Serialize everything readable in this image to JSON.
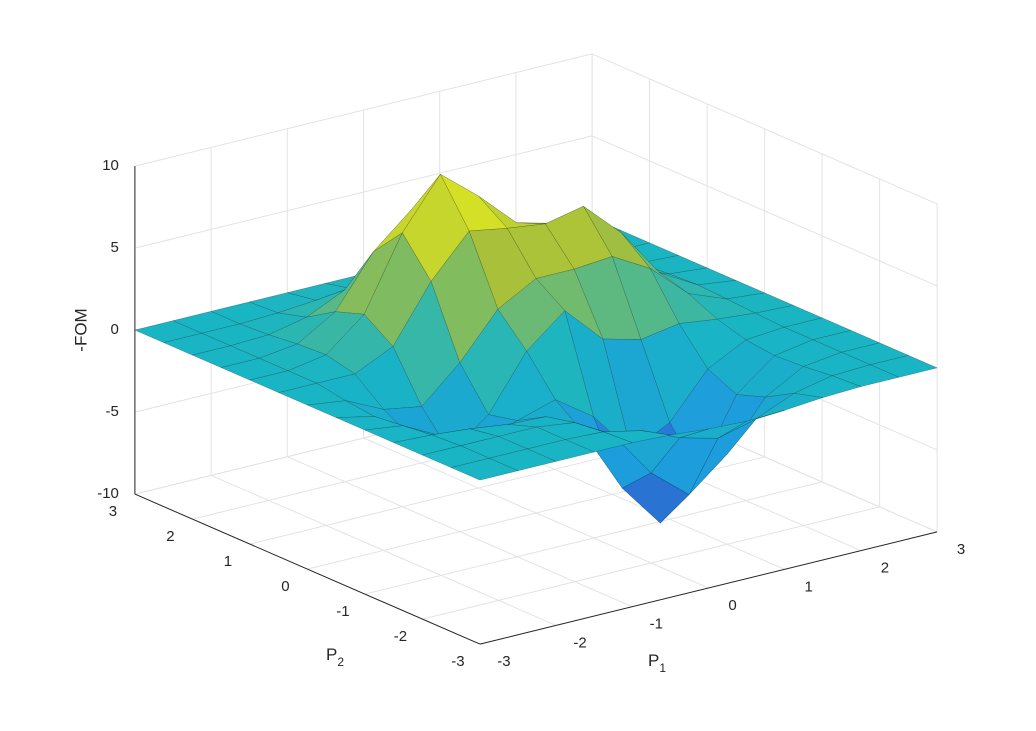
{
  "chart_data": {
    "type": "surface",
    "xlabel": {
      "text": "P",
      "subscript": "1"
    },
    "ylabel": {
      "text": "P",
      "subscript": "2"
    },
    "zlabel": "-FOM",
    "xlim": [
      -3,
      3
    ],
    "ylim": [
      -3,
      3
    ],
    "zlim": [
      -10,
      10
    ],
    "xticks": [
      -3,
      -2,
      -1,
      0,
      1,
      2,
      3
    ],
    "yticks": [
      -3,
      -2,
      -1,
      0,
      1,
      2,
      3
    ],
    "zticks": [
      -10,
      -5,
      0,
      5,
      10
    ],
    "grid": true,
    "colormap": [
      "#3e26a8",
      "#2094e5",
      "#19b5c4",
      "#a5be3c",
      "#f9fb15"
    ],
    "x": [
      -3,
      -2.5,
      -2,
      -1.5,
      -1,
      -0.5,
      0,
      0.5,
      1,
      1.5,
      2,
      2.5,
      3
    ],
    "y": [
      -3,
      -2.5,
      -2,
      -1.5,
      -1,
      -0.5,
      0,
      0.5,
      1,
      1.5,
      2,
      2.5,
      3
    ],
    "z": [
      [
        0,
        0,
        0,
        0,
        0,
        -0.1,
        -0.3,
        -0.4,
        -0.3,
        -0.1,
        0,
        0,
        0
      ],
      [
        0,
        0,
        0,
        0,
        -0.1,
        -0.6,
        -1.6,
        -2.2,
        -1.6,
        -0.6,
        -0.1,
        0,
        0
      ],
      [
        0,
        0,
        0,
        0,
        -0.3,
        -1.6,
        -4.5,
        -6.4,
        -4.5,
        -1.6,
        -0.3,
        0,
        0
      ],
      [
        0,
        -0.1,
        -0.3,
        -0.6,
        -0.7,
        -2.3,
        -6.2,
        -8.9,
        -6.4,
        -2.2,
        -0.4,
        0,
        0
      ],
      [
        0,
        -0.3,
        -1.5,
        -2.5,
        -1.7,
        -1.0,
        -2.6,
        -5.3,
        -4.1,
        -1.4,
        -0.2,
        0,
        0
      ],
      [
        0,
        -0.5,
        -2.4,
        -3.9,
        -2.1,
        1.2,
        3.1,
        0.8,
        0.2,
        0.6,
        0.3,
        0.1,
        0
      ],
      [
        0,
        -0.3,
        -1.4,
        -1.8,
        0.3,
        3.0,
        4.3,
        4.3,
        4.5,
        3.2,
        1.1,
        0.2,
        0
      ],
      [
        0,
        0,
        0,
        1.1,
        4.5,
        7.0,
        6.6,
        6.3,
        6.8,
        4.6,
        1.6,
        0.3,
        0
      ],
      [
        0,
        0,
        0.4,
        2.3,
        6.7,
        9.7,
        7.8,
        5.6,
        5.0,
        3.3,
        1.1,
        0.2,
        0
      ],
      [
        0,
        0,
        0.3,
        1.7,
        4.8,
        6.8,
        5.2,
        2.8,
        1.9,
        1.2,
        0.4,
        0.1,
        0
      ],
      [
        0,
        0,
        0.1,
        0.6,
        1.7,
        2.4,
        1.7,
        0.8,
        0.4,
        0.2,
        0.1,
        0,
        0
      ],
      [
        0,
        0,
        0,
        0.1,
        0.3,
        0.4,
        0.3,
        0.1,
        0,
        0,
        0,
        0,
        0
      ],
      [
        0,
        0,
        0,
        0,
        0,
        0,
        0,
        0,
        0,
        0,
        0,
        0,
        0
      ]
    ]
  }
}
